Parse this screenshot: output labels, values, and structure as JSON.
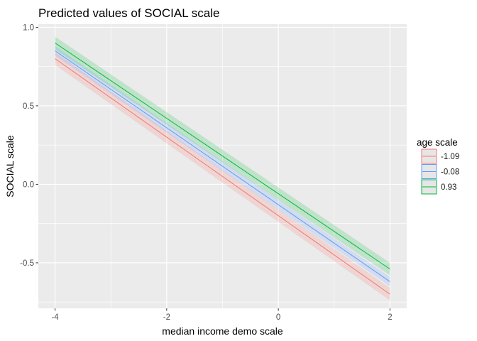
{
  "chart_data": {
    "type": "line",
    "title": "Predicted values of SOCIAL scale",
    "xlabel": "median income demo scale",
    "ylabel": "SOCIAL scale",
    "xlim": [
      -4.3,
      2.3
    ],
    "ylim": [
      -0.79,
      1.02
    ],
    "x_major_ticks": [
      -4,
      -2,
      0,
      2
    ],
    "x_tick_labels": [
      "-4",
      "-2",
      "0",
      "2"
    ],
    "x_minor_ticks": [
      -3,
      -1,
      1
    ],
    "y_major_ticks": [
      1.0,
      0.5,
      0.0,
      -0.5
    ],
    "y_tick_labels": [
      "1.0",
      "0.5",
      "0.0",
      "-0.5"
    ],
    "y_minor_ticks": [
      0.75,
      0.25,
      -0.25,
      -0.75
    ],
    "grid": true,
    "legend": {
      "title": "age scale",
      "position": "right"
    },
    "series": [
      {
        "name": "-1.09",
        "color": "#F8766D",
        "x": [
          -4,
          2
        ],
        "y": [
          0.8,
          -0.7
        ],
        "ci_low": [
          0.76,
          -0.74
        ],
        "ci_high": [
          0.84,
          -0.66
        ]
      },
      {
        "name": "-0.08",
        "color": "#619CFF",
        "x": [
          -4,
          2
        ],
        "y": [
          0.85,
          -0.62
        ],
        "ci_low": [
          0.82,
          -0.65
        ],
        "ci_high": [
          0.88,
          -0.59
        ]
      },
      {
        "name": "0.93",
        "color": "#00BA38",
        "x": [
          -4,
          2
        ],
        "y": [
          0.9,
          -0.54
        ],
        "ci_low": [
          0.86,
          -0.58
        ],
        "ci_high": [
          0.94,
          -0.5
        ]
      }
    ]
  }
}
